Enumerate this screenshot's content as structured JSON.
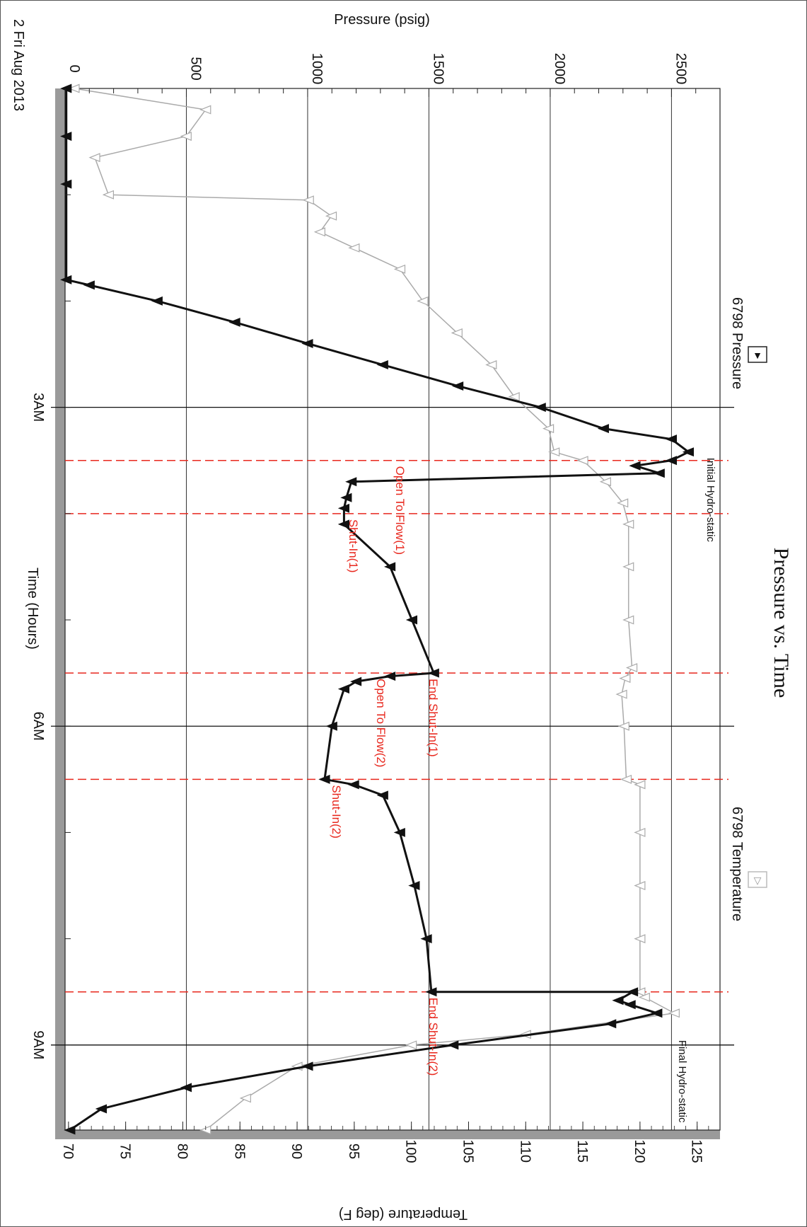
{
  "chart_data": {
    "type": "line",
    "title": "Pressure vs. Time",
    "date_label": "2 Fri Aug 2013",
    "xlabel": "Time (Hours)",
    "ylabel_left": "Pressure (psig)",
    "ylabel_right": "Temperature (deg F)",
    "x_ticks": [
      "3AM",
      "6AM",
      "9AM"
    ],
    "x_tick_hours": [
      3,
      6,
      9
    ],
    "xlim": [
      0.0,
      9.8
    ],
    "pressure_ticks": [
      "0",
      "500",
      "1000",
      "1500",
      "2000",
      "2500"
    ],
    "pressure_tick_values": [
      0,
      500,
      1000,
      1500,
      2000,
      2500
    ],
    "pressure_lim": [
      0,
      2700
    ],
    "temperature_ticks": [
      "70",
      "75",
      "80",
      "85",
      "90",
      "95",
      "100",
      "105",
      "110",
      "115",
      "120",
      "125"
    ],
    "temperature_tick_values": [
      70,
      75,
      80,
      85,
      90,
      95,
      100,
      105,
      110,
      115,
      120,
      125
    ],
    "temperature_lim": [
      69.7,
      127
    ],
    "grid": true,
    "legend_position": "top",
    "series": [
      {
        "name": "6798 Pressure",
        "color": "#111111",
        "marker": "filled-triangle",
        "x": [
          0.0,
          0.45,
          0.9,
          1.8,
          1.85,
          2.0,
          2.2,
          2.4,
          2.6,
          2.8,
          3.0,
          3.2,
          3.3,
          3.42,
          3.5,
          3.55,
          3.62,
          3.7,
          3.85,
          3.95,
          4.1,
          4.5,
          5.0,
          5.5,
          5.53,
          5.58,
          5.65,
          6.0,
          6.5,
          6.55,
          6.65,
          7.0,
          7.5,
          8.0,
          8.5,
          8.5,
          8.58,
          8.62,
          8.7,
          8.8,
          9.0,
          9.2,
          9.4,
          9.6,
          9.8
        ],
        "y": [
          5,
          5,
          5,
          5,
          100,
          380,
          700,
          1000,
          1310,
          1620,
          1960,
          2220,
          2500,
          2570,
          2500,
          2350,
          2450,
          1180,
          1160,
          1150,
          1150,
          1340,
          1430,
          1520,
          1340,
          1200,
          1150,
          1100,
          1070,
          1190,
          1310,
          1380,
          1440,
          1490,
          1510,
          2340,
          2280,
          2330,
          2440,
          2250,
          1600,
          1000,
          500,
          150,
          20
        ]
      },
      {
        "name": "6798 Temperature",
        "color": "#aaaaaa",
        "marker": "open-triangle",
        "x": [
          0.0,
          0.2,
          0.45,
          0.65,
          1.0,
          1.05,
          1.2,
          1.35,
          1.5,
          1.7,
          2.0,
          2.3,
          2.6,
          2.9,
          3.2,
          3.42,
          3.5,
          3.7,
          3.9,
          4.1,
          4.5,
          5.0,
          5.45,
          5.55,
          5.7,
          6.0,
          6.5,
          6.55,
          7.0,
          7.5,
          8.0,
          8.5,
          8.55,
          8.7,
          8.9,
          9.0,
          9.2,
          9.5,
          9.8
        ],
        "y": [
          70.5,
          82.0,
          80.3,
          72.3,
          73.5,
          91.0,
          93.0,
          92.0,
          95.0,
          99.0,
          101.0,
          104.0,
          107.0,
          109.0,
          112.0,
          112.5,
          115.0,
          117.0,
          118.5,
          119.0,
          119.0,
          119.0,
          119.3,
          118.7,
          118.4,
          118.6,
          118.8,
          120.0,
          120.0,
          120.0,
          120.0,
          120.0,
          120.4,
          123.0,
          110.0,
          100.0,
          90.0,
          85.5,
          82.0
        ]
      }
    ],
    "annotations": [
      {
        "label": "Initial Hydro-static",
        "x": 3.42,
        "color": "#111111"
      },
      {
        "label": "Open To Flow(1)",
        "x": 3.5,
        "color": "#e8281e"
      },
      {
        "label": "Shut-In(1)",
        "x": 4.0,
        "color": "#e8281e"
      },
      {
        "label": "End Shut-In(1)",
        "x": 5.5,
        "color": "#e8281e"
      },
      {
        "label": "Open To Flow(2)",
        "x": 5.5,
        "color": "#e8281e"
      },
      {
        "label": "Shut-In(2)",
        "x": 6.5,
        "color": "#e8281e"
      },
      {
        "label": "End Shut-In(2)",
        "x": 8.5,
        "color": "#e8281e"
      },
      {
        "label": "Final Hydro-static",
        "x": 8.9,
        "color": "#111111"
      }
    ],
    "event_lines_hours": [
      3.5,
      4.0,
      5.5,
      6.5,
      8.5
    ]
  },
  "legend_button_pressure": "▼",
  "legend_button_temperature": "▽"
}
